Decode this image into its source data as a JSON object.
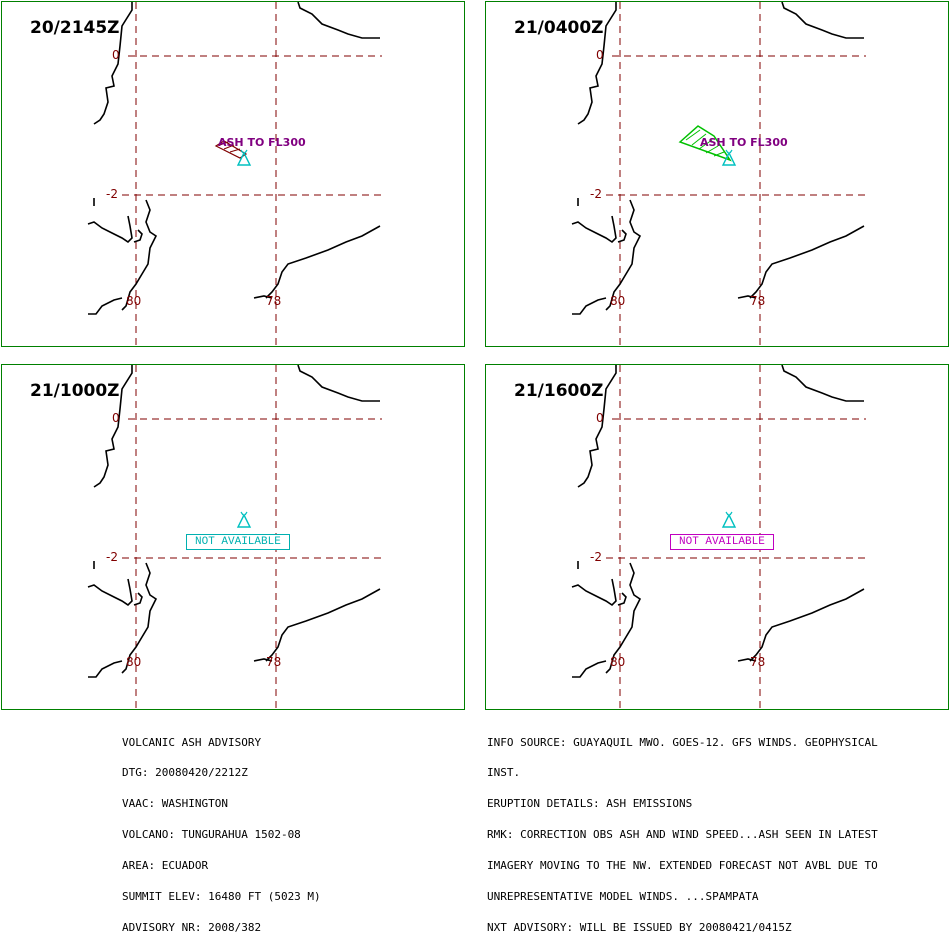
{
  "colors": {
    "panel_border": "#008000",
    "grid": "#800000",
    "coast": "#000000",
    "volcano": "#00c0c0",
    "ash_label": "#800080"
  },
  "panels": [
    {
      "time": "20/2145Z",
      "ash_label": "ASH TO FL300",
      "lat_top": "0",
      "lat_bottom": "-2",
      "lon_left": "80",
      "lon_right": "78"
    },
    {
      "time": "21/0400Z",
      "ash_label": "ASH TO FL300",
      "lat_top": "0",
      "lat_bottom": "-2",
      "lon_left": "80",
      "lon_right": "78"
    },
    {
      "time": "21/1000Z",
      "not_available": "NOT AVAILABLE",
      "lat_top": "0",
      "lat_bottom": "-2",
      "lon_left": "80",
      "lon_right": "78",
      "na_color": "#00b0b0"
    },
    {
      "time": "21/1600Z",
      "not_available": "NOT AVAILABLE",
      "lat_top": "0",
      "lat_bottom": "-2",
      "lon_left": "80",
      "lon_right": "78",
      "na_color": "#c000c0"
    }
  ],
  "advisory_left": [
    "VOLCANIC ASH ADVISORY",
    "DTG: 20080420/2212Z",
    "VAAC: WASHINGTON",
    "VOLCANO: TUNGURAHUA 1502-08",
    "AREA: ECUADOR",
    "SUMMIT ELEV: 16480 FT (5023 M)",
    "ADVISORY NR: 2008/382"
  ],
  "advisory_right": [
    "INFO SOURCE: GUAYAQUIL MWO. GOES-12. GFS WINDS. GEOPHYSICAL",
    "INST.",
    "ERUPTION DETAILS: ASH EMISSIONS",
    "RMK: CORRECTION OBS ASH AND WIND SPEED...ASH SEEN IN LATEST",
    "IMAGERY MOVING TO THE NW. EXTENDED FORECAST NOT AVBL DUE TO",
    "UNREPRESENTATIVE MODEL WINDS. ...SPAMPATA",
    "NXT ADVISORY: WILL BE ISSUED BY 20080421/0415Z"
  ]
}
